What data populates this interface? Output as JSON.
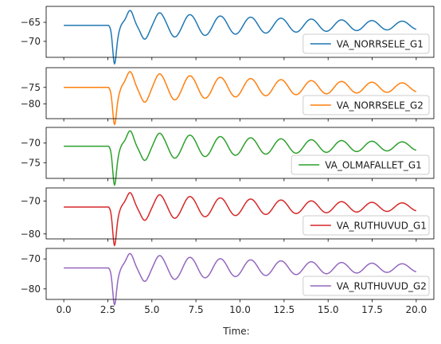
{
  "chart_data": {
    "type": "line",
    "xlabel": "Time:",
    "xlim": [
      -1.0,
      21.0
    ],
    "xticks": [
      "0.0",
      "2.5",
      "5.0",
      "7.5",
      "10.0",
      "12.5",
      "15.0",
      "17.5",
      "20.0"
    ],
    "panels": [
      {
        "series_name": "VA_NORRSELE_G1",
        "color": "#1f77b4",
        "baseline": -65.8,
        "dip": -73.2,
        "osc_amp": 4.0,
        "ylim": [
          -74.2,
          -60.8
        ],
        "yticks": [
          -65,
          -70
        ],
        "legend_loc": "lower right"
      },
      {
        "series_name": "VA_NORRSELE_G2",
        "color": "#ff7f0e",
        "baseline": -75.0,
        "dip": -83.0,
        "osc_amp": 5.0,
        "ylim": [
          -84.5,
          -69.0
        ],
        "yticks": [
          -75,
          -80
        ],
        "legend_loc": "lower right"
      },
      {
        "series_name": "VA_OLMAFALLET_G1",
        "color": "#2ca02c",
        "baseline": -70.8,
        "dip": -78.0,
        "osc_amp": 4.0,
        "ylim": [
          -79.0,
          -66.0
        ],
        "yticks": [
          -70,
          -75
        ],
        "legend_loc": "lower right"
      },
      {
        "series_name": "VA_RUTHUVUD_G1",
        "color": "#d62728",
        "baseline": -71.8,
        "dip": -80.5,
        "osc_amp": 4.5,
        "ylim": [
          -81.5,
          -66.0
        ],
        "yticks": [
          -70,
          -80
        ],
        "legend_loc": "lower right"
      },
      {
        "series_name": "VA_RUTHUVUD_G2",
        "color": "#9467bd",
        "baseline": -73.0,
        "dip": -82.0,
        "osc_amp": 5.0,
        "ylim": [
          -83.5,
          -66.5
        ],
        "yticks": [
          -70,
          -80
        ],
        "legend_loc": "lower right"
      }
    ]
  }
}
